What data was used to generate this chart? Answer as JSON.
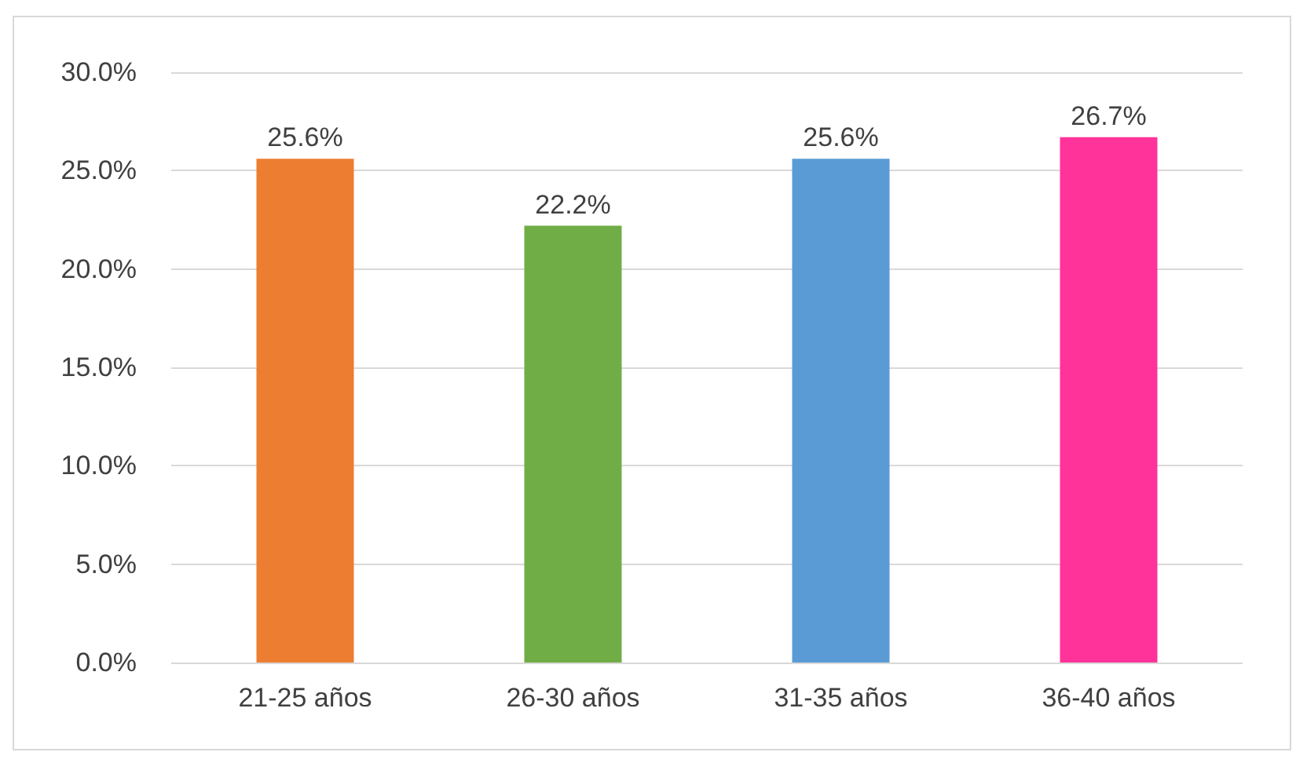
{
  "chart_data": {
    "type": "bar",
    "categories": [
      "21-25 años",
      "26-30 años",
      "31-35 años",
      "36-40 años"
    ],
    "values": [
      25.6,
      22.2,
      25.6,
      26.7
    ],
    "colors": [
      "#ed7d31",
      "#70ad47",
      "#5b9bd5",
      "#ff3399"
    ],
    "value_labels": [
      "25.6%",
      "22.2%",
      "25.6%",
      "26.7%"
    ],
    "ylim": [
      0,
      30
    ],
    "yticks": [
      {
        "value": 0,
        "label": "0.0%"
      },
      {
        "value": 5,
        "label": "5.0%"
      },
      {
        "value": 10,
        "label": "10.0%"
      },
      {
        "value": 15,
        "label": "15.0%"
      },
      {
        "value": 20,
        "label": "20.0%"
      },
      {
        "value": 25,
        "label": "25.0%"
      },
      {
        "value": 30,
        "label": "30.0%"
      }
    ],
    "grid": true
  }
}
